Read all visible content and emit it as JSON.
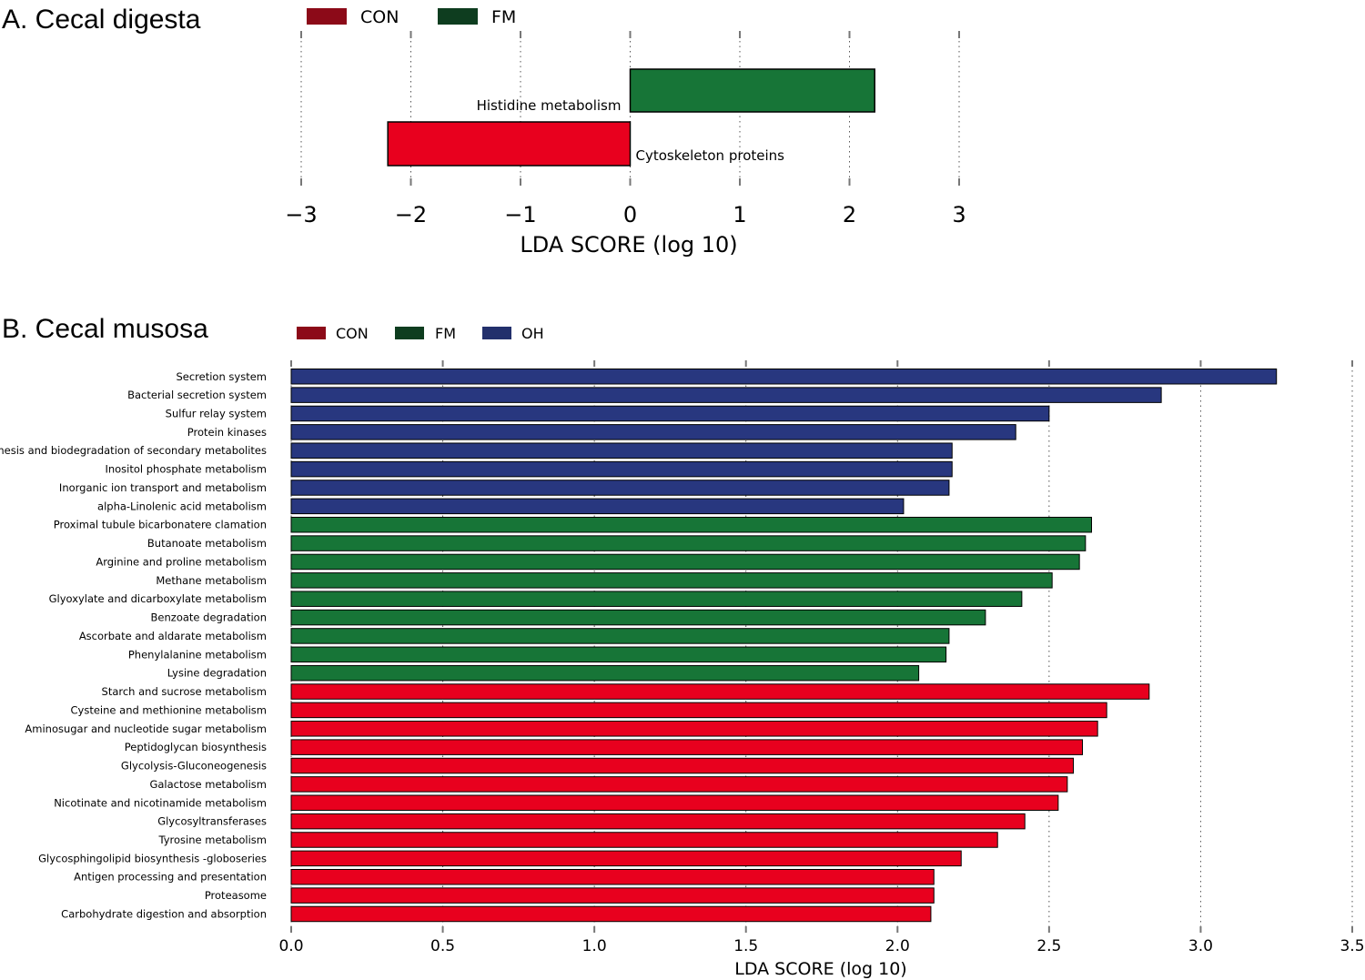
{
  "colors": {
    "CON": "#e8001e",
    "FM": "#177537",
    "OH": "#28377f",
    "CON_legend": "#8c0a18",
    "FM_legend": "#0e3d1f",
    "OH_legend": "#23306c"
  },
  "chart_data": [
    {
      "panel_title": "A. Cecal digesta",
      "type": "bar",
      "orientation": "horizontal",
      "legend": [
        {
          "name": "CON"
        },
        {
          "name": "FM"
        }
      ],
      "legend_position": "top",
      "categories": [
        "Histidine metabolism",
        "Cytoskeleton proteins"
      ],
      "values": [
        2.23,
        -2.21
      ],
      "groups": [
        "FM",
        "CON"
      ],
      "xlabel": "LDA SCORE (log 10)",
      "xlim": [
        -3,
        3
      ],
      "xticks": [
        "−3",
        "−2",
        "−1",
        "0",
        "1",
        "2",
        "3"
      ],
      "xtick_values": [
        -3,
        -2,
        -1,
        0,
        1,
        2,
        3
      ],
      "grid": "vertical dotted"
    },
    {
      "panel_title": "B. Cecal musosa",
      "type": "bar",
      "orientation": "horizontal",
      "legend": [
        {
          "name": "CON"
        },
        {
          "name": "FM"
        },
        {
          "name": "OH"
        }
      ],
      "legend_position": "top",
      "categories": [
        "Secretion system",
        "Bacterial secretion system",
        "Sulfur relay system",
        "Protein kinases",
        "Biosynthesis and biodegradation of secondary metabolites",
        "Inositol phosphate metabolism",
        "Inorganic ion transport and metabolism",
        "alpha-Linolenic acid metabolism",
        "Proximal tubule bicarbonatere clamation",
        "Butanoate metabolism",
        "Arginine and proline metabolism",
        "Methane metabolism",
        "Glyoxylate and dicarboxylate metabolism",
        "Benzoate degradation",
        "Ascorbate and aldarate metabolism",
        "Phenylalanine metabolism",
        "Lysine degradation",
        "Starch and sucrose metabolism",
        "Cysteine and methionine metabolism",
        "Aminosugar and nucleotide sugar metabolism",
        "Peptidoglycan biosynthesis",
        "Glycolysis-Gluconeogenesis",
        "Galactose metabolism",
        "Nicotinate and nicotinamide metabolism",
        "Glycosyltransferases",
        "Tyrosine metabolism",
        "Glycosphingolipid biosynthesis -globoseries",
        "Antigen processing and presentation",
        "Proteasome",
        "Carbohydrate digestion and absorption"
      ],
      "values": [
        3.25,
        2.87,
        2.5,
        2.39,
        2.18,
        2.18,
        2.17,
        2.02,
        2.64,
        2.62,
        2.6,
        2.51,
        2.41,
        2.29,
        2.17,
        2.16,
        2.07,
        2.83,
        2.69,
        2.66,
        2.61,
        2.58,
        2.56,
        2.53,
        2.42,
        2.33,
        2.21,
        2.12,
        2.12,
        2.11
      ],
      "groups": [
        "OH",
        "OH",
        "OH",
        "OH",
        "OH",
        "OH",
        "OH",
        "OH",
        "FM",
        "FM",
        "FM",
        "FM",
        "FM",
        "FM",
        "FM",
        "FM",
        "FM",
        "CON",
        "CON",
        "CON",
        "CON",
        "CON",
        "CON",
        "CON",
        "CON",
        "CON",
        "CON",
        "CON",
        "CON",
        "CON"
      ],
      "xlabel": "LDA SCORE (log 10)",
      "xlim": [
        0,
        3.5
      ],
      "xticks": [
        "0.0",
        "0.5",
        "1.0",
        "1.5",
        "2.0",
        "2.5",
        "3.0",
        "3.5"
      ],
      "xtick_values": [
        0,
        0.5,
        1,
        1.5,
        2,
        2.5,
        3,
        3.5
      ],
      "grid": "vertical dotted"
    }
  ]
}
